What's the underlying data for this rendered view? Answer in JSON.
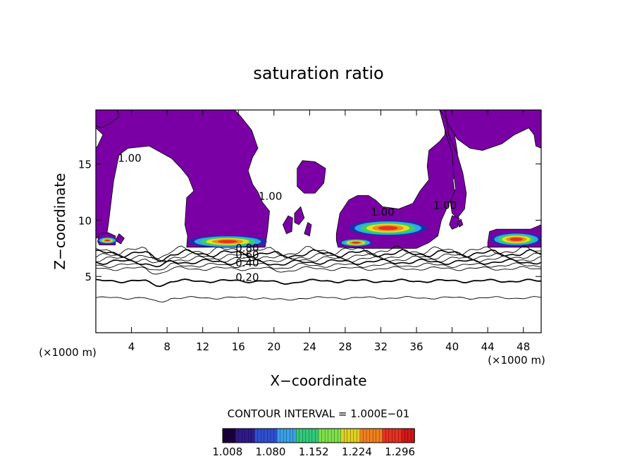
{
  "chart_data": {
    "type": "contour",
    "title": "saturation ratio",
    "xlabel": "X−coordinate",
    "ylabel": "Z−coordinate",
    "x_unit_left": "(×1000 m)",
    "x_unit_right": "(×1000 m)",
    "xlim": [
      0,
      50
    ],
    "ylim": [
      0,
      19.8
    ],
    "x_ticks": [
      4,
      8,
      12,
      16,
      20,
      24,
      28,
      32,
      36,
      40,
      44,
      48
    ],
    "y_ticks": [
      5,
      10,
      15
    ],
    "grid": false,
    "contour_interval_text": "CONTOUR INTERVAL = 1.000E−01",
    "contour_levels": [
      0.1,
      0.2,
      0.3,
      0.4,
      0.5,
      0.6,
      0.7,
      0.8,
      0.9
    ],
    "contour_labels": [
      {
        "text": "1.00",
        "x": 3.8,
        "z": 15.2
      },
      {
        "text": "1.00",
        "x": 19.6,
        "z": 11.8
      },
      {
        "text": "1.00",
        "x": 32.2,
        "z": 10.4
      },
      {
        "text": "1.00",
        "x": 39.2,
        "z": 11.0
      },
      {
        "text": "0.80",
        "x": 17.0,
        "z": 7.2
      },
      {
        "text": "0.60",
        "x": 17.0,
        "z": 6.6
      },
      {
        "text": "0.40",
        "x": 17.0,
        "z": 5.9
      },
      {
        "text": "0.20",
        "x": 17.0,
        "z": 4.6
      }
    ],
    "colorbar": {
      "ticks": [
        "1.008",
        "1.080",
        "1.152",
        "1.224",
        "1.296"
      ],
      "range": [
        1.0,
        1.32
      ],
      "colors": [
        "#1a003a",
        "#2f1a8c",
        "#2f4fd0",
        "#3aa0e8",
        "#33c97a",
        "#7fe04a",
        "#e0d020",
        "#f08020",
        "#e83020",
        "#d01818"
      ]
    },
    "supersaturated_color": "#7a00a6"
  }
}
